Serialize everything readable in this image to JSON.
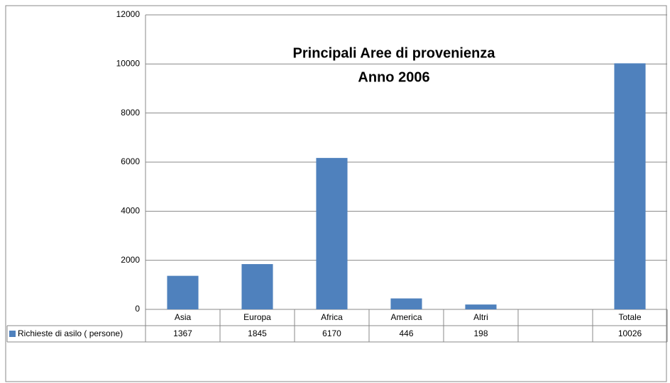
{
  "chart_data": {
    "type": "bar",
    "title": [
      "Principali Aree di provenienza",
      "Anno 2006"
    ],
    "categories": [
      "Asia",
      "Europa",
      "Africa",
      "America",
      "Altri",
      null,
      "Totale"
    ],
    "series": [
      {
        "name": "Richieste di asilo ( persone)",
        "color": "#4f81bd",
        "values": [
          1367,
          1845,
          6170,
          446,
          198,
          null,
          10026
        ]
      }
    ],
    "ylim": [
      0,
      12000
    ],
    "yticks": [
      0,
      2000,
      4000,
      6000,
      8000,
      10000,
      12000
    ],
    "grid": true
  }
}
